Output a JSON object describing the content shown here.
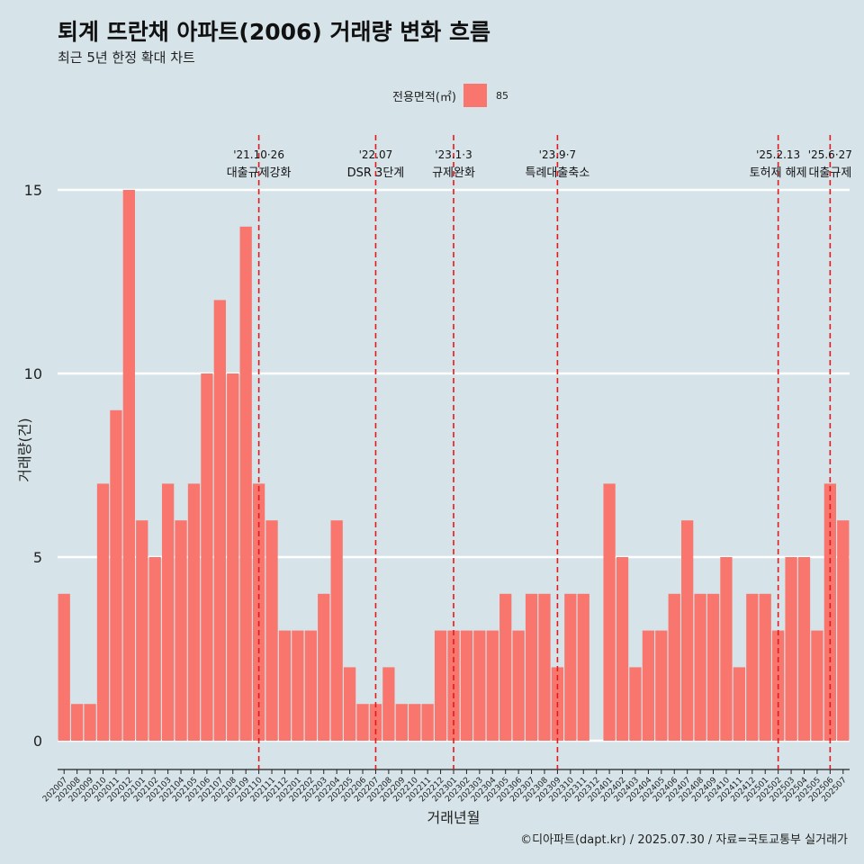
{
  "title": "퇴계 뜨란채 아파트(2006) 거래량 변화 흐름",
  "subtitle": "최근 5년 한정 확대 차트",
  "legend": {
    "title": "전용면적(㎡)",
    "item": "85"
  },
  "caption": "©디아파트(dapt.kr) / 2025.07.30 / 자료=국토교통부 실거래가",
  "colors": {
    "bar": "#f8766d",
    "background": "#d6e4ea",
    "grid": "#ffffff",
    "event_line": "#e31a1c"
  },
  "chart_data": {
    "type": "bar",
    "xlabel": "거래년월",
    "ylabel": "거래량(건)",
    "ylim": [
      0,
      15
    ],
    "yticks": [
      0,
      5,
      10,
      15
    ],
    "grid": true,
    "legend_position": "top",
    "categories": [
      "202007",
      "202008",
      "202009",
      "202010",
      "202011",
      "202012",
      "202101",
      "202102",
      "202103",
      "202104",
      "202105",
      "202106",
      "202107",
      "202108",
      "202109",
      "202110",
      "202111",
      "202112",
      "202201",
      "202202",
      "202203",
      "202204",
      "202205",
      "202206",
      "202207",
      "202208",
      "202209",
      "202210",
      "202211",
      "202212",
      "202301",
      "202302",
      "202303",
      "202304",
      "202305",
      "202306",
      "202307",
      "202308",
      "202309",
      "202310",
      "202311",
      "202312",
      "202401",
      "202402",
      "202403",
      "202404",
      "202405",
      "202406",
      "202407",
      "202408",
      "202409",
      "202410",
      "202411",
      "202412",
      "202501",
      "202502",
      "202503",
      "202504",
      "202505",
      "202506",
      "202507"
    ],
    "series": [
      {
        "name": "85",
        "values": [
          4,
          1,
          1,
          7,
          9,
          15,
          6,
          5,
          7,
          6,
          7,
          10,
          12,
          10,
          14,
          7,
          6,
          3,
          3,
          3,
          4,
          6,
          2,
          1,
          1,
          2,
          1,
          1,
          1,
          3,
          3,
          3,
          3,
          3,
          4,
          3,
          4,
          4,
          2,
          4,
          4,
          0,
          7,
          5,
          2,
          3,
          3,
          4,
          6,
          4,
          4,
          5,
          2,
          4,
          4,
          3,
          5,
          5,
          3,
          7,
          6
        ]
      }
    ],
    "annotations": [
      {
        "at": "202110",
        "date": "'21.10·26",
        "label": "대출규제강화"
      },
      {
        "at": "202207",
        "date": "'22.07",
        "label": "DSR 3단계"
      },
      {
        "at": "202301",
        "date": "'23.1·3",
        "label": "규제완화"
      },
      {
        "at": "202309",
        "date": "'23.9·7",
        "label": "특례대출축소"
      },
      {
        "at": "202502",
        "date": "'25.2.13",
        "label": "토허제 해제"
      },
      {
        "at": "202506",
        "date": "'25.6·27",
        "label": "대출규제"
      }
    ]
  }
}
